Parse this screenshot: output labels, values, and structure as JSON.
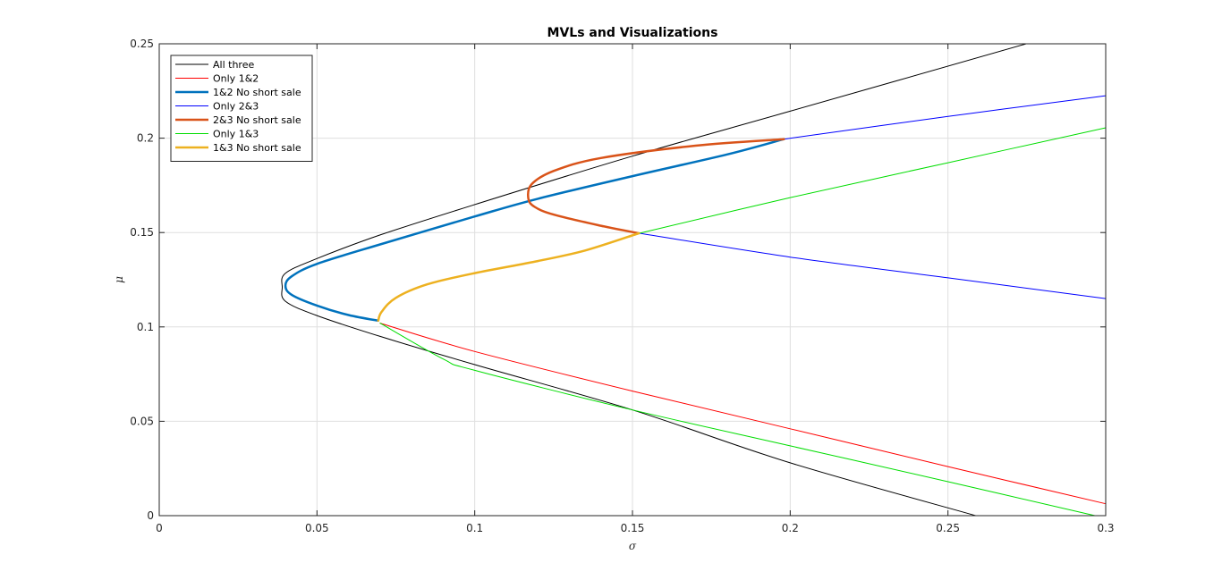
{
  "chart_data": {
    "type": "line",
    "title": "MVLs and Visualizations",
    "xlabel": "σ",
    "ylabel": "μ",
    "xlim": [
      0,
      0.3
    ],
    "ylim": [
      0,
      0.25
    ],
    "xticks": [
      0,
      0.05,
      0.1,
      0.15,
      0.2,
      0.25,
      0.3
    ],
    "yticks": [
      0,
      0.05,
      0.1,
      0.15,
      0.2,
      0.25
    ],
    "xtick_labels": [
      "0",
      "0.05",
      "0.1",
      "0.15",
      "0.2",
      "0.25",
      "0.3"
    ],
    "ytick_labels": [
      "0",
      "0.05",
      "0.1",
      "0.15",
      "0.2",
      "0.25"
    ],
    "grid": true,
    "legend_position": "top-left",
    "series": [
      {
        "name": "All three",
        "color": "#000000",
        "width": 1,
        "x": [
          0.2748,
          0.2,
          0.15,
          0.1,
          0.07,
          0.05,
          0.04,
          0.039,
          0.04,
          0.05,
          0.07,
          0.1,
          0.15,
          0.2,
          0.2588
        ],
        "y": [
          0.25,
          0.2143,
          0.1905,
          0.1648,
          0.1487,
          0.1362,
          0.1284,
          0.121,
          0.1136,
          0.106,
          0.095,
          0.08,
          0.056,
          0.028,
          0.0
        ]
      },
      {
        "name": "Only 1&2",
        "color": "#ff0000",
        "width": 1,
        "x": [
          0.07,
          0.1,
          0.15,
          0.2,
          0.25,
          0.3
        ],
        "y": [
          0.102,
          0.087,
          0.066,
          0.046,
          0.026,
          0.0063
        ]
      },
      {
        "name": "1&2 No short sale",
        "color": "#0072bd",
        "width": 2.5,
        "x": [
          0.0694,
          0.06,
          0.05,
          0.042,
          0.04,
          0.042,
          0.05,
          0.07,
          0.1,
          0.12,
          0.15,
          0.18,
          0.198
        ],
        "y": [
          0.1033,
          0.1063,
          0.1113,
          0.117,
          0.1218,
          0.1268,
          0.1334,
          0.1437,
          0.1585,
          0.1679,
          0.1799,
          0.1914,
          0.1995
        ]
      },
      {
        "name": "Only 2&3",
        "color": "#0000ff",
        "width": 1,
        "x": [
          0.1522,
          0.2,
          0.25,
          0.3,
          0.198,
          0.25,
          0.3
        ],
        "y": [
          0.1496,
          0.137,
          0.126,
          0.115,
          0.1995,
          0.2115,
          0.2225
        ]
      },
      {
        "name": "2&3 No short sale",
        "color": "#d95319",
        "width": 2.5,
        "x": [
          0.198,
          0.17,
          0.14,
          0.125,
          0.118,
          0.117,
          0.119,
          0.125,
          0.14,
          0.152
        ],
        "y": [
          0.1995,
          0.196,
          0.1895,
          0.1826,
          0.1755,
          0.168,
          0.1636,
          0.1595,
          0.1536,
          0.1496
        ]
      },
      {
        "name": "Only 1&3",
        "color": "#00dd00",
        "width": 1,
        "x": [
          0.07,
          0.09,
          0.1,
          0.15,
          0.2,
          0.25,
          0.2966,
          0.1522,
          0.2,
          0.25,
          0.3
        ],
        "y": [
          0.102,
          0.083,
          0.077,
          0.056,
          0.037,
          0.018,
          0.0,
          0.1496,
          0.1685,
          0.187,
          0.2055
        ]
      },
      {
        "name": "1&3 No short sale",
        "color": "#edb120",
        "width": 2.5,
        "x": [
          0.0694,
          0.0705,
          0.075,
          0.085,
          0.1,
          0.12,
          0.135,
          0.152
        ],
        "y": [
          0.1033,
          0.108,
          0.1154,
          0.1226,
          0.1285,
          0.1349,
          0.1405,
          0.1496
        ]
      }
    ]
  }
}
